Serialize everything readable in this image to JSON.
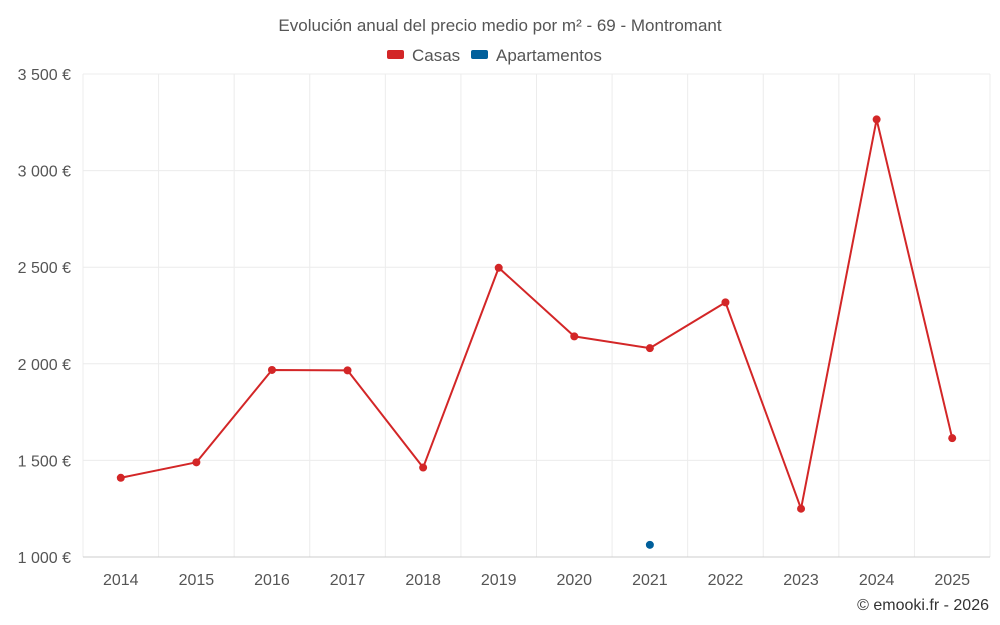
{
  "chart_data": {
    "type": "line",
    "title": "Evolución anual del precio medio por m² - 69 - Montromant",
    "categories": [
      "2014",
      "2015",
      "2016",
      "2017",
      "2018",
      "2019",
      "2020",
      "2021",
      "2022",
      "2023",
      "2024",
      "2025"
    ],
    "series": [
      {
        "name": "Casas",
        "color": "#d32627",
        "values": [
          1410,
          1490,
          1968,
          1966,
          1463,
          2497,
          2142,
          2081,
          2318,
          1250,
          3265,
          1615
        ]
      },
      {
        "name": "Apartamentos",
        "color": "#005f9b",
        "values": [
          null,
          null,
          null,
          null,
          null,
          null,
          null,
          1063,
          null,
          null,
          null,
          null
        ]
      }
    ],
    "ylim": [
      1000,
      3500
    ],
    "yticks": [
      1000,
      1500,
      2000,
      2500,
      3000,
      3500
    ],
    "ytick_labels": [
      "1 000 €",
      "1 500 €",
      "2 000 €",
      "2 500 €",
      "3 000 €",
      "3 500 €"
    ],
    "grid": true,
    "legend_position": "top-center"
  },
  "credit": "© emooki.fr - 2026"
}
